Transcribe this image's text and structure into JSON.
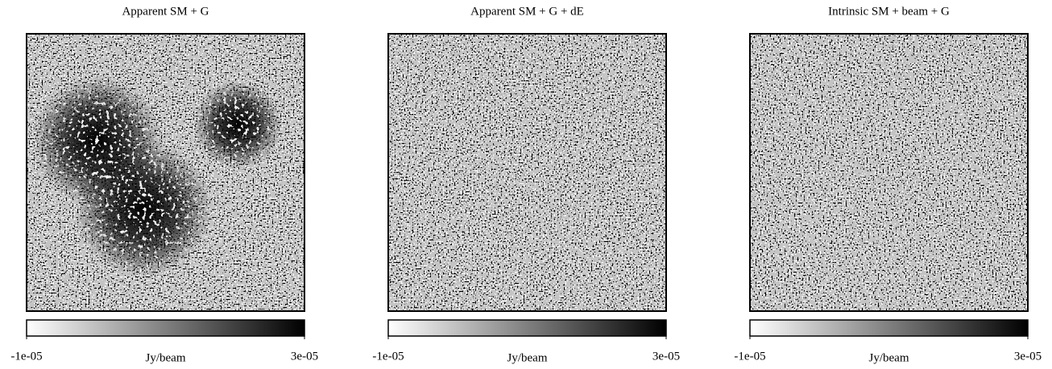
{
  "chart_data": [
    {
      "type": "image",
      "title": "Apparent SM + G",
      "colorbar_label": "Jy/beam",
      "clim": [
        -1e-05,
        3e-05
      ],
      "cticks": [
        {
          "value": -1e-05,
          "label": "-1e-05"
        },
        {
          "value": 3e-05,
          "label": "3e-05"
        }
      ],
      "cmap": "gray_r"
    },
    {
      "type": "image",
      "title": "Apparent SM + G + dE",
      "colorbar_label": "Jy/beam",
      "clim": [
        -1e-05,
        3e-05
      ],
      "cticks": [
        {
          "value": -1e-05,
          "label": "-1e-05"
        },
        {
          "value": 3e-05,
          "label": "3e-05"
        }
      ],
      "cmap": "gray_r"
    },
    {
      "type": "image",
      "title": "Intrinsic SM + beam + G",
      "colorbar_label": "Jy/beam",
      "clim": [
        -1e-05,
        3e-05
      ],
      "cticks": [
        {
          "value": -1e-05,
          "label": "-1e-05"
        },
        {
          "value": 3e-05,
          "label": "3e-05"
        }
      ],
      "cmap": "gray_r"
    }
  ]
}
